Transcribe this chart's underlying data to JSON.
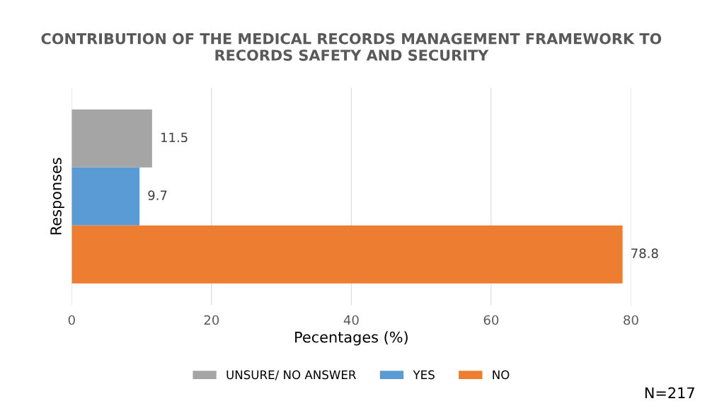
{
  "chart_data": {
    "type": "bar",
    "orientation": "horizontal",
    "title": "CONTRIBUTION OF THE MEDICAL RECORDS MANAGEMENT FRAMEWORK TO RECORDS SAFETY AND SECURITY",
    "xlabel": "Pecentages (%)",
    "ylabel": "Responses",
    "categories": [
      null
    ],
    "series": [
      {
        "name": "UNSURE/ NO ANSWER",
        "color": "#a5a5a5",
        "values": [
          11.5
        ]
      },
      {
        "name": "YES",
        "color": "#5b9bd5",
        "values": [
          9.7
        ]
      },
      {
        "name": "NO",
        "color": "#ed7d31",
        "values": [
          78.8
        ]
      }
    ],
    "xlim": [
      0,
      80
    ],
    "xticks": [
      0,
      20,
      40,
      60,
      80
    ],
    "grid": "x",
    "legend": "bottom",
    "data_labels": true,
    "annotations": [
      "N=217"
    ]
  }
}
